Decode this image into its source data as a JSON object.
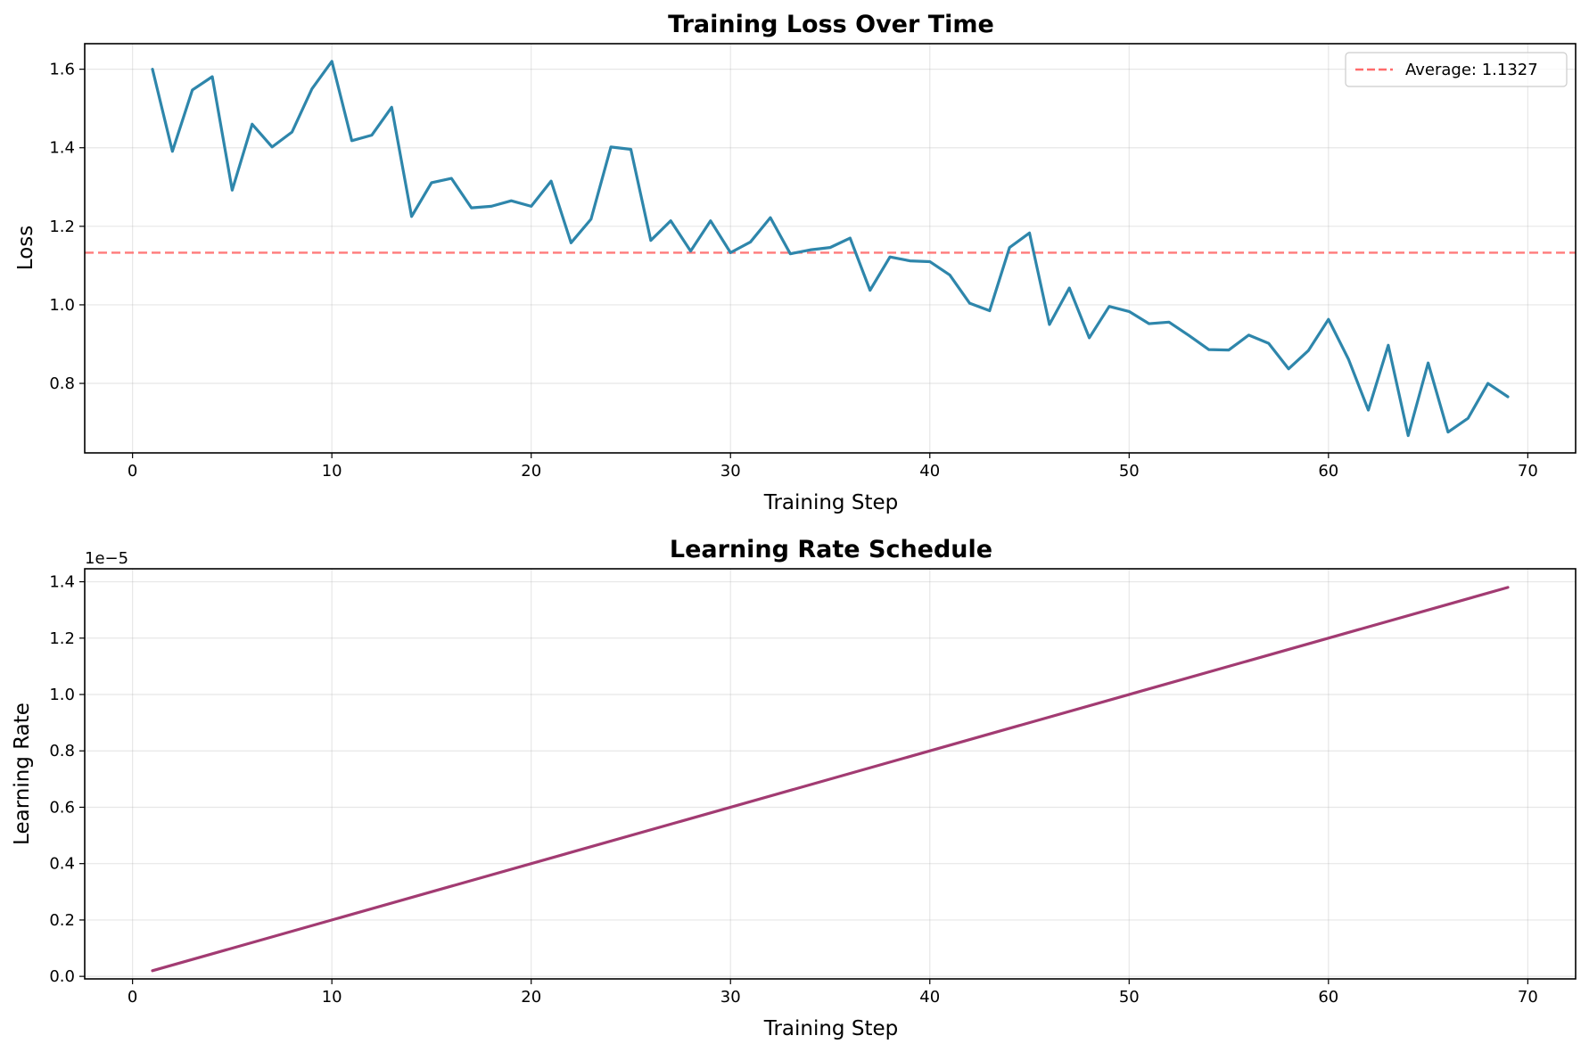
{
  "chart_data": [
    {
      "type": "line",
      "title": "Training Loss Over Time",
      "xlabel": "Training Step",
      "ylabel": "Loss",
      "xlim": [
        -2.4,
        72.4
      ],
      "ylim": [
        0.623,
        1.665
      ],
      "xticks": [
        0,
        10,
        20,
        30,
        40,
        50,
        60,
        70
      ],
      "yticks": [
        0.8,
        1.0,
        1.2,
        1.4,
        1.6
      ],
      "ytick_labels": [
        "0.8",
        "1.0",
        "1.2",
        "1.4",
        "1.6"
      ],
      "grid": true,
      "legend_position": "top-right",
      "series": [
        {
          "color": "#2e86ab",
          "x": [
            1,
            2,
            3,
            4,
            5,
            6,
            7,
            8,
            9,
            10,
            11,
            12,
            13,
            14,
            15,
            16,
            17,
            18,
            19,
            20,
            21,
            22,
            23,
            24,
            25,
            26,
            27,
            28,
            29,
            30,
            31,
            32,
            33,
            34,
            35,
            36,
            37,
            38,
            39,
            40,
            41,
            42,
            43,
            44,
            45,
            46,
            47,
            48,
            49,
            50,
            51,
            52,
            53,
            54,
            55,
            56,
            57,
            58,
            59,
            60,
            61,
            62,
            63,
            64,
            65,
            66,
            67,
            68,
            69
          ],
          "y": [
            1.6,
            1.391,
            1.547,
            1.581,
            1.292,
            1.46,
            1.402,
            1.44,
            1.55,
            1.62,
            1.418,
            1.432,
            1.503,
            1.225,
            1.311,
            1.322,
            1.247,
            1.251,
            1.265,
            1.251,
            1.315,
            1.158,
            1.218,
            1.402,
            1.396,
            1.164,
            1.214,
            1.137,
            1.214,
            1.133,
            1.16,
            1.222,
            1.13,
            1.14,
            1.146,
            1.17,
            1.037,
            1.122,
            1.112,
            1.11,
            1.076,
            1.004,
            0.985,
            1.146,
            1.183,
            0.95,
            1.043,
            0.916,
            0.996,
            0.983,
            0.952,
            0.956,
            0.922,
            0.886,
            0.885,
            0.923,
            0.902,
            0.837,
            0.884,
            0.963,
            0.862,
            0.732,
            0.897,
            0.667,
            0.852,
            0.676,
            0.711,
            0.8,
            0.766
          ]
        }
      ],
      "reference_lines": [
        {
          "name": "Average: 1.1327",
          "y": 1.1327,
          "color": "#ff6b6b",
          "style": "dashed"
        }
      ]
    },
    {
      "type": "line",
      "title": "Learning Rate Schedule",
      "xlabel": "Training Step",
      "ylabel": "Learning Rate",
      "offset_label": "1e−5",
      "xlim": [
        -2.4,
        72.4
      ],
      "ylim": [
        -9e-08,
        1.446e-05
      ],
      "xticks": [
        0,
        10,
        20,
        30,
        40,
        50,
        60,
        70
      ],
      "yticks": [
        0,
        2e-06,
        4e-06,
        6e-06,
        8e-06,
        1e-05,
        1.2e-05,
        1.4e-05
      ],
      "ytick_labels": [
        "0.0",
        "0.2",
        "0.4",
        "0.6",
        "0.8",
        "1.0",
        "1.2",
        "1.4"
      ],
      "grid": true,
      "series": [
        {
          "color": "#a23b72",
          "x": [
            1,
            69
          ],
          "y": [
            2e-07,
            1.38e-05
          ]
        }
      ]
    }
  ]
}
